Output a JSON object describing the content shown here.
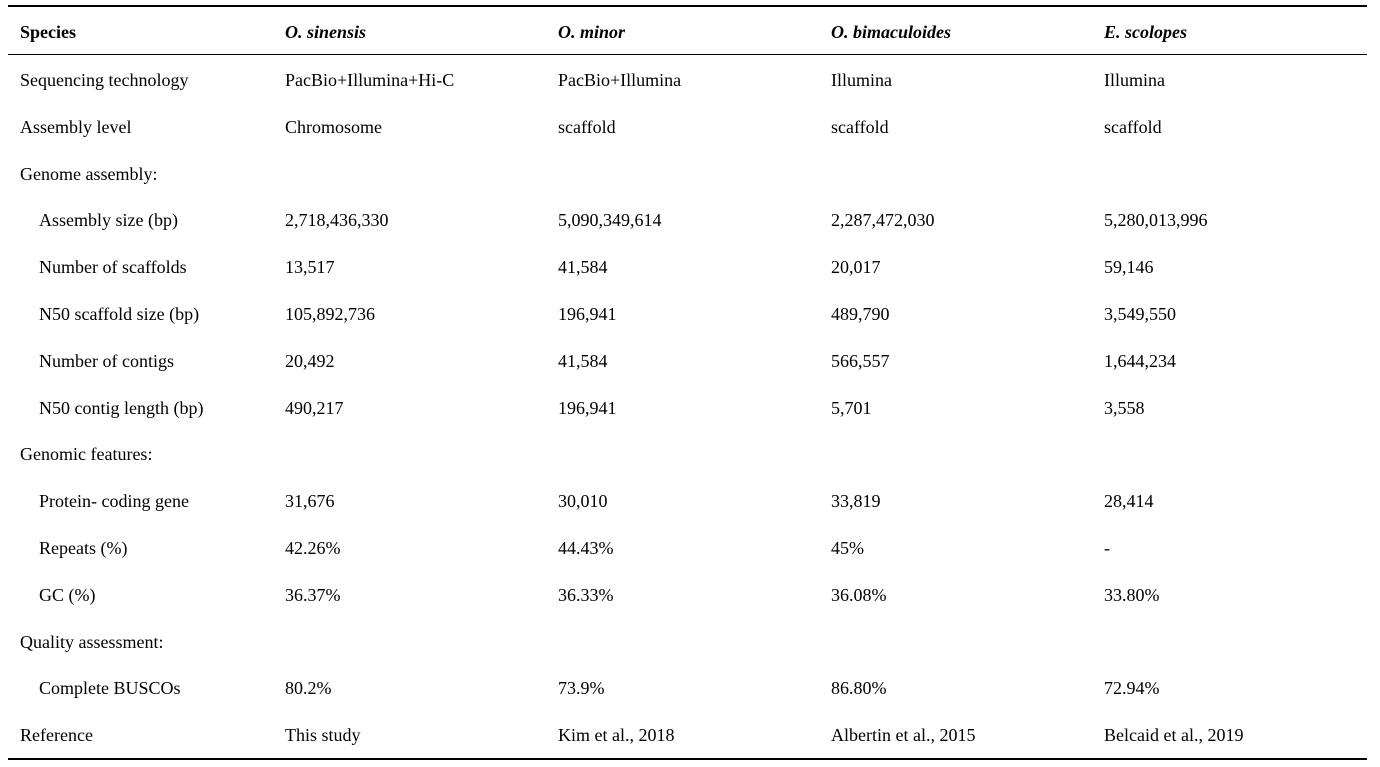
{
  "table": {
    "header": [
      "Species",
      "O. sinensis",
      "O. minor",
      "O. bimaculoides",
      "E. scolopes"
    ],
    "body": [
      [
        "Sequencing technology",
        "PacBio+Illumina+Hi-C",
        "PacBio+Illumina",
        "Illumina",
        "Illumina"
      ],
      [
        "Assembly level",
        "Chromosome",
        "scaffold",
        "scaffold",
        "scaffold"
      ],
      {
        "label": "Genome assembly:",
        "rows": [
          [
            "Assembly size (bp)",
            "2,718,436,330",
            "5,090,349,614",
            "2,287,472,030",
            "5,280,013,996"
          ],
          [
            "Number of scaffolds",
            "13,517",
            "41,584",
            "20,017",
            "59,146"
          ],
          [
            "N50 scaffold size (bp)",
            "105,892,736",
            "196,941",
            "489,790",
            "3,549,550"
          ],
          [
            "Number of contigs",
            "20,492",
            "41,584",
            "566,557",
            "1,644,234"
          ],
          [
            "N50 contig length (bp)",
            "490,217",
            "196,941",
            "5,701",
            "3,558"
          ]
        ]
      },
      {
        "label": "Genomic features:",
        "rows": [
          [
            "Protein-  coding gene",
            "31,676",
            "30,010",
            "33,819",
            "28,414"
          ],
          [
            "Repeats (%)",
            "42.26%",
            "44.43%",
            "45%",
            "-"
          ],
          [
            "GC (%)",
            "36.37%",
            "36.33%",
            "36.08%",
            "33.80%"
          ]
        ]
      },
      {
        "label": "Quality assessment:",
        "rows": [
          [
            "Complete BUSCOs",
            "80.2%",
            "73.9%",
            "86.80%",
            "72.94%"
          ]
        ]
      },
      [
        "Reference",
        "This study",
        "Kim et al., 2018",
        "Albertin et al., 2015",
        "Belcaid et al., 2019"
      ]
    ]
  }
}
